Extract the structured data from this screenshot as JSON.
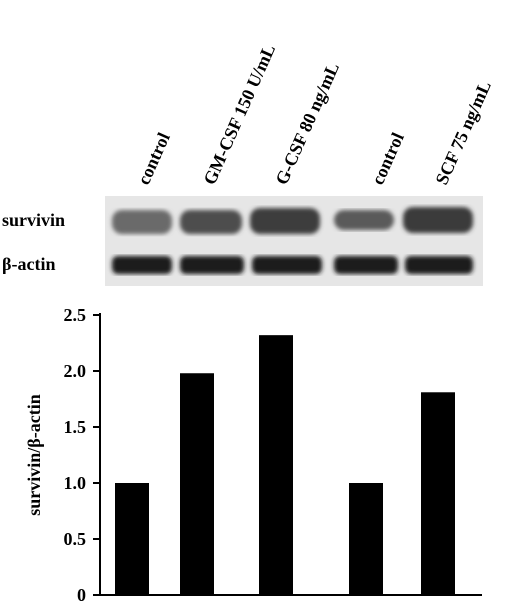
{
  "blot": {
    "rows": [
      "survivin",
      "β-actin"
    ]
  },
  "chart_data": {
    "type": "bar",
    "ylabel": "survivin/β-actin",
    "categories": [
      "control",
      "GM-CSF 150 U/mL",
      "G-CSF 80 ng/mL",
      "control",
      "SCF 75 ng/mL"
    ],
    "values": [
      1.0,
      1.98,
      2.32,
      1.0,
      1.81
    ],
    "color": "#000000",
    "ylim": [
      0,
      2.5
    ],
    "yticks": [
      0,
      0.5,
      {
        "value": 1,
        "label": "1.0"
      },
      1.5,
      {
        "value": 2,
        "label": "2.0"
      },
      2.5
    ],
    "grid": false
  }
}
